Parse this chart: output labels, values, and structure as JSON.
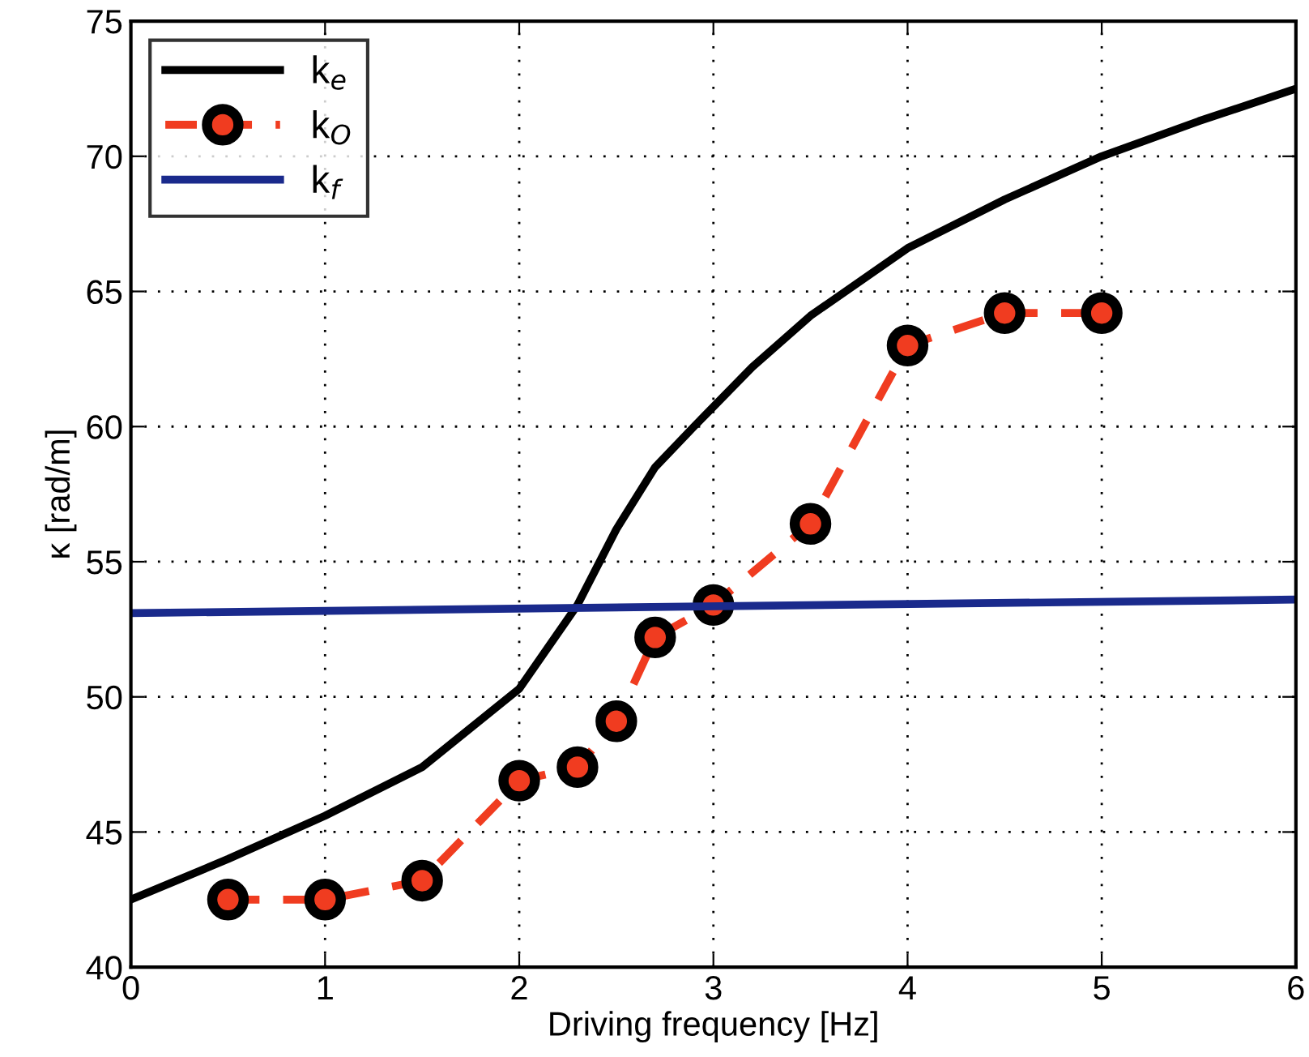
{
  "chart_data": {
    "type": "line",
    "xlabel": "Driving frequency [Hz]",
    "ylabel": "κ [rad/m]",
    "xlim": [
      0,
      6
    ],
    "xticks": [
      0,
      1,
      2,
      3,
      4,
      5,
      6
    ],
    "ylim": [
      40,
      75
    ],
    "yticks": [
      40,
      45,
      50,
      55,
      60,
      65,
      70,
      75
    ],
    "grid": true,
    "legend": "top left",
    "series": [
      {
        "name": "k$_{e}$",
        "color": "#000000",
        "line_style": "solid",
        "marker": "none",
        "x": [
          0,
          0.5,
          1,
          1.5,
          2,
          2.3,
          2.5,
          2.7,
          2.9,
          3.2,
          3.5,
          4,
          4.5,
          5,
          5.5,
          6
        ],
        "values": [
          42.5,
          44.0,
          45.6,
          47.4,
          50.3,
          53.4,
          56.2,
          58.5,
          60.0,
          62.2,
          64.1,
          66.6,
          68.4,
          70.0,
          71.3,
          72.5
        ]
      },
      {
        "name": "k$_{O}$",
        "color": "#f03c20",
        "line_style": "dashed",
        "marker": "circle",
        "x": [
          0.5,
          1,
          1.5,
          2,
          2.3,
          2.5,
          2.7,
          3,
          3.5,
          4,
          4.5,
          5
        ],
        "values": [
          42.5,
          42.5,
          43.2,
          46.9,
          47.4,
          49.1,
          52.2,
          53.4,
          56.4,
          63.0,
          64.2,
          64.2
        ]
      },
      {
        "name": "k$_{f}$",
        "color": "#1a2a8c",
        "line_style": "solid",
        "marker": "none",
        "x": [
          0,
          6
        ],
        "values": [
          53.1,
          53.6
        ]
      }
    ]
  }
}
